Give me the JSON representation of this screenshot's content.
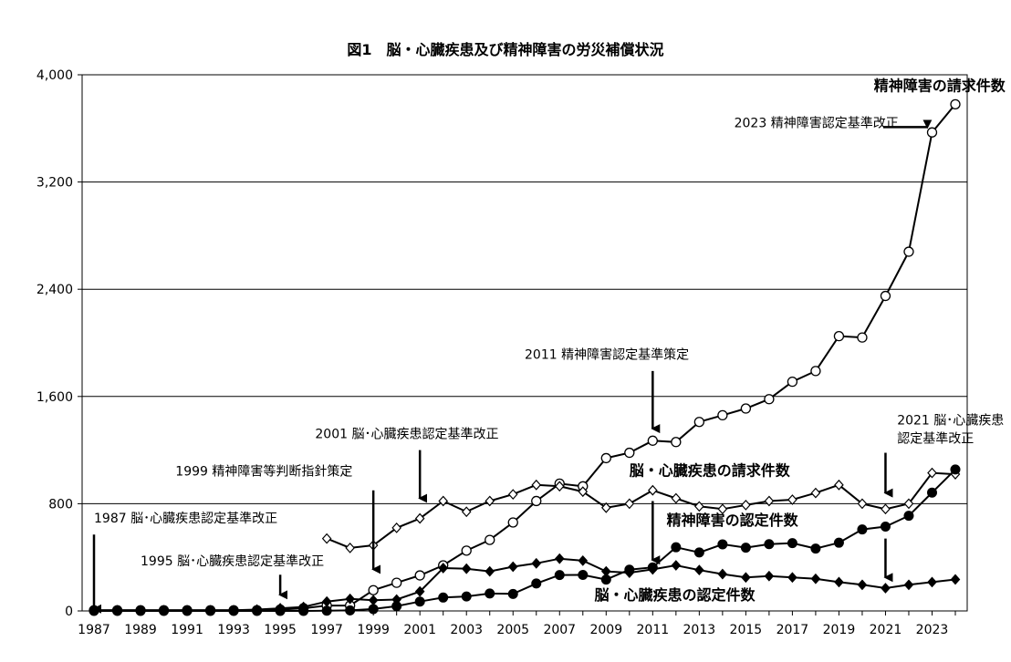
{
  "chart_data": {
    "type": "line",
    "title": "図1　脳・心臓疾患及び精神障害の労災補償状況",
    "xlabel": "",
    "ylabel": "",
    "ylim": [
      0,
      4000
    ],
    "yticks": [
      0,
      800,
      1600,
      2400,
      3200,
      4000
    ],
    "ytick_labels": [
      "0",
      "800",
      "1,600",
      "2,400",
      "3,200",
      "4,000"
    ],
    "xticks": [
      1987,
      1989,
      1991,
      1993,
      1995,
      1997,
      1999,
      2001,
      2003,
      2005,
      2007,
      2009,
      2011,
      2013,
      2015,
      2017,
      2019,
      2021,
      2023
    ],
    "xtick_labels": [
      "1987",
      "1989",
      "1991",
      "1993",
      "1995",
      "1997",
      "1999",
      "2001",
      "2003",
      "2005",
      "2007",
      "2009",
      "2011",
      "2013",
      "2015",
      "2017",
      "2019",
      "2021",
      "2023"
    ],
    "xlim": [
      1987,
      2024
    ],
    "grid": "horizontal",
    "series": [
      {
        "name": "精神障害の請求件数",
        "marker": "open-circle",
        "x": [
          1987,
          1988,
          1989,
          1990,
          1991,
          1992,
          1993,
          1994,
          1995,
          1996,
          1997,
          1998,
          1999,
          2000,
          2001,
          2002,
          2003,
          2004,
          2005,
          2006,
          2007,
          2008,
          2009,
          2010,
          2011,
          2012,
          2013,
          2014,
          2015,
          2016,
          2017,
          2018,
          2019,
          2020,
          2021,
          2022,
          2023,
          2024
        ],
        "values": [
          5,
          5,
          5,
          5,
          5,
          5,
          5,
          5,
          10,
          20,
          40,
          40,
          155,
          210,
          265,
          340,
          450,
          530,
          660,
          820,
          950,
          930,
          1140,
          1180,
          1270,
          1260,
          1410,
          1460,
          1510,
          1580,
          1710,
          1790,
          2050,
          2040,
          2350,
          2680,
          3570,
          3780
        ]
      },
      {
        "name": "脳・心臓疾患の請求件数",
        "marker": "open-diamond",
        "x": [
          1997,
          1998,
          1999,
          2000,
          2001,
          2002,
          2003,
          2004,
          2005,
          2006,
          2007,
          2008,
          2009,
          2010,
          2011,
          2012,
          2013,
          2014,
          2015,
          2016,
          2017,
          2018,
          2019,
          2020,
          2021,
          2022,
          2023,
          2024
        ],
        "values": [
          540,
          470,
          490,
          620,
          690,
          820,
          740,
          820,
          870,
          940,
          930,
          890,
          770,
          800,
          900,
          840,
          780,
          760,
          790,
          820,
          830,
          880,
          940,
          800,
          760,
          800,
          1030,
          1020
        ]
      },
      {
        "name": "精神障害の認定件数",
        "marker": "filled-circle",
        "x": [
          1987,
          1988,
          1989,
          1990,
          1991,
          1992,
          1993,
          1994,
          1995,
          1996,
          1997,
          1998,
          1999,
          2000,
          2001,
          2002,
          2003,
          2004,
          2005,
          2006,
          2007,
          2008,
          2009,
          2010,
          2011,
          2012,
          2013,
          2014,
          2015,
          2016,
          2017,
          2018,
          2019,
          2020,
          2021,
          2022,
          2023,
          2024
        ],
        "values": [
          0,
          0,
          0,
          0,
          0,
          0,
          0,
          0,
          0,
          0,
          2,
          4,
          14,
          36,
          70,
          100,
          108,
          130,
          127,
          205,
          268,
          269,
          234,
          308,
          325,
          475,
          436,
          497,
          472,
          498,
          506,
          465,
          509,
          608,
          629,
          710,
          883,
          1055
        ]
      },
      {
        "name": "脳・心臓疾患の認定件数",
        "marker": "filled-diamond",
        "x": [
          1987,
          1988,
          1989,
          1990,
          1991,
          1992,
          1993,
          1994,
          1995,
          1996,
          1997,
          1998,
          1999,
          2000,
          2001,
          2002,
          2003,
          2004,
          2005,
          2006,
          2007,
          2008,
          2009,
          2010,
          2011,
          2012,
          2013,
          2014,
          2015,
          2016,
          2017,
          2018,
          2019,
          2020,
          2021,
          2022,
          2023,
          2024
        ],
        "values": [
          5,
          5,
          5,
          5,
          5,
          5,
          5,
          10,
          20,
          30,
          70,
          90,
          80,
          85,
          145,
          320,
          315,
          295,
          330,
          355,
          390,
          375,
          295,
          285,
          310,
          340,
          305,
          275,
          250,
          260,
          250,
          240,
          215,
          195,
          170,
          195,
          215,
          235
        ]
      }
    ],
    "series_labels": [
      {
        "text": "精神障害の請求件数",
        "x": 2020.5,
        "y": 3880
      },
      {
        "text": "脳・心臓疾患の請求件数",
        "x": 2010,
        "y": 1010
      },
      {
        "text": "精神障害の認定件数",
        "x": 2011.6,
        "y": 640
      },
      {
        "text": "脳・心臓疾患の認定件数",
        "x": 2008.5,
        "y": 80
      }
    ],
    "annotations": [
      {
        "lines": [
          "1987 脳･心臓疾患認定基準改正"
        ],
        "x": 1987,
        "y": 660,
        "arrow": {
          "x": 1987,
          "y1": 570,
          "y2": 15
        }
      },
      {
        "lines": [
          "1995 脳･心臓疾患認定基準改正"
        ],
        "x": 1989,
        "y": 340,
        "arrow": {
          "x": 1995,
          "y1": 270,
          "y2": 120
        }
      },
      {
        "lines": [
          "1999 精神障害等判断指針策定"
        ],
        "x": 1990.5,
        "y": 1010,
        "arrow": {
          "x": 1999,
          "y1": 900,
          "y2": 310
        }
      },
      {
        "lines": [
          "2001 脳･心臓疾患認定基準改正"
        ],
        "x": 1996.5,
        "y": 1290,
        "arrow": {
          "x": 2001,
          "y1": 1200,
          "y2": 840
        }
      },
      {
        "lines": [
          "2011 精神障害認定基準策定"
        ],
        "x": 2005.5,
        "y": 1880,
        "arrow": {
          "x": 2011,
          "y1": 1790,
          "y2": 1360
        }
      },
      {
        "lines": [
          "2021 脳･心臓疾患",
          "認定基準改正"
        ],
        "x": 2021.5,
        "y": 1390,
        "arrow": {
          "x": 2021,
          "y1": 1180,
          "y2": 880
        }
      },
      {
        "lines": [
          "2023 精神障害認定基準改正"
        ],
        "x": 2014.5,
        "y": 3610
      }
    ],
    "extra_arrows": [
      {
        "x": 2011,
        "y1": 820,
        "y2": 380
      },
      {
        "x": 2021,
        "y1": 540,
        "y2": 250
      }
    ],
    "horizontal_arrow": {
      "x1": 2020.9,
      "x2": 2022.8,
      "y": 3610
    }
  }
}
